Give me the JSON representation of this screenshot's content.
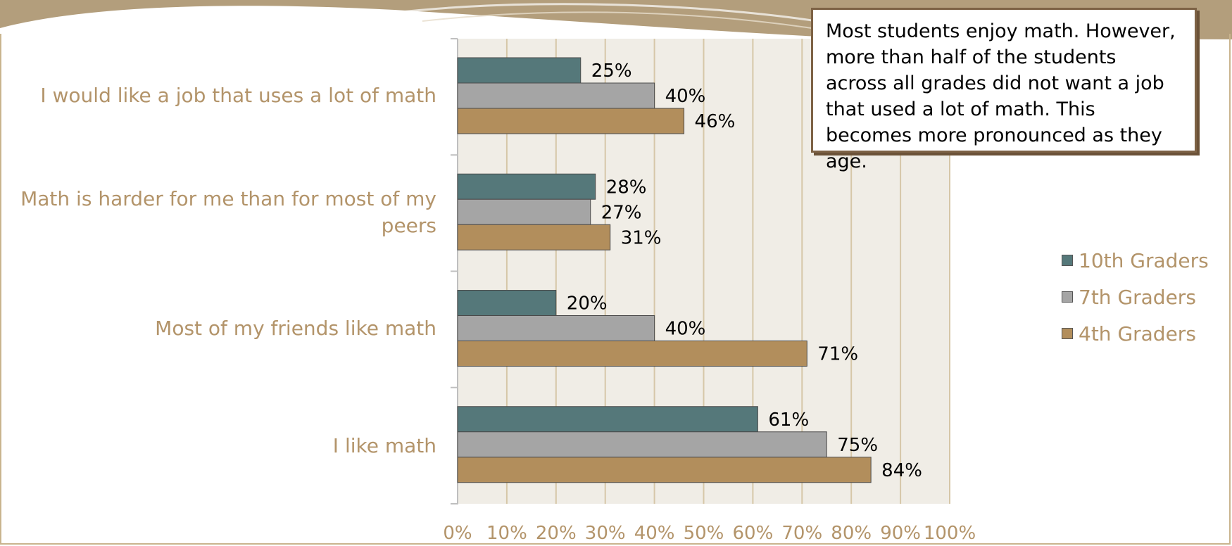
{
  "colors": {
    "10th": "#55787a",
    "7th": "#a5a5a5",
    "4th": "#b28e5c",
    "plot_bg": "#f0ede6",
    "grid": "#d6c7a8",
    "label": "#b3946a"
  },
  "annotation": {
    "text": "Most students enjoy math. However, more than half of the students across all grades did not want a job that used a lot of math. This becomes more pronounced as they age."
  },
  "chart_data": {
    "type": "bar",
    "orientation": "horizontal",
    "categories": [
      "I would like a job that uses a lot of math",
      "Math is harder for me than for most of my peers",
      "Most of my friends like math",
      "I like math"
    ],
    "series": [
      {
        "name": "10th Graders",
        "values": [
          25,
          28,
          20,
          61
        ],
        "labels": [
          "25%",
          "28%",
          "20%",
          "61%"
        ]
      },
      {
        "name": "7th Graders",
        "values": [
          40,
          27,
          40,
          75
        ],
        "labels": [
          "40%",
          "27%",
          "40%",
          "75%"
        ]
      },
      {
        "name": "4th Graders",
        "values": [
          46,
          31,
          71,
          84
        ],
        "labels": [
          "46%",
          "31%",
          "71%",
          "84%"
        ]
      }
    ],
    "xticks": [
      "0%",
      "10%",
      "20%",
      "30%",
      "40%",
      "50%",
      "60%",
      "70%",
      "80%",
      "90%",
      "100%"
    ],
    "xlim": [
      0,
      100
    ],
    "grid": true,
    "legend_position": "right"
  }
}
